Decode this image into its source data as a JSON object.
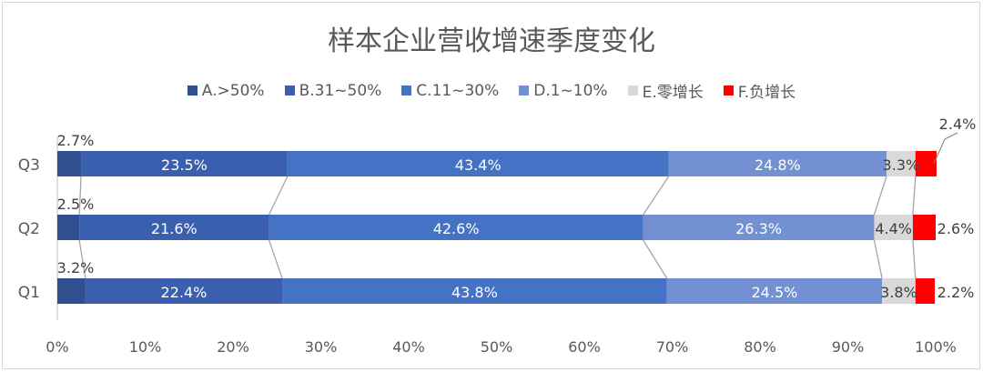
{
  "chart_data": {
    "type": "bar",
    "orientation": "horizontal",
    "stacked": "percent",
    "title": "样本企业营收增速季度变化",
    "categories": [
      "Q3",
      "Q2",
      "Q1"
    ],
    "series": [
      {
        "name": "A.>50%",
        "color": "#2F4F8F",
        "values": [
          2.7,
          2.5,
          3.2
        ],
        "labels": [
          "2.7%",
          "2.5%",
          "3.2%"
        ]
      },
      {
        "name": "B.31~50%",
        "color": "#3A5FAE",
        "values": [
          23.5,
          21.6,
          22.4
        ],
        "labels": [
          "23.5%",
          "21.6%",
          "22.4%"
        ]
      },
      {
        "name": "C.11~30%",
        "color": "#4472C4",
        "values": [
          43.4,
          42.6,
          43.8
        ],
        "labels": [
          "43.4%",
          "42.6%",
          "43.8%"
        ]
      },
      {
        "name": "D.1~10%",
        "color": "#7391D2",
        "values": [
          24.8,
          26.3,
          24.5
        ],
        "labels": [
          "24.8%",
          "26.3%",
          "24.5%"
        ]
      },
      {
        "name": "E.零增长",
        "color": "#D9D9D9",
        "values": [
          3.3,
          4.4,
          3.8
        ],
        "labels": [
          "3.3%",
          "4.4%",
          "3.8%"
        ]
      },
      {
        "name": "F.负增长",
        "color": "#FF0000",
        "values": [
          2.4,
          2.6,
          2.2
        ],
        "labels": [
          "2.4%",
          "2.6%",
          "2.2%"
        ]
      }
    ],
    "xlim": [
      0,
      100
    ],
    "x_ticks": [
      "0%",
      "10%",
      "20%",
      "30%",
      "40%",
      "50%",
      "60%",
      "70%",
      "80%",
      "90%",
      "100%"
    ],
    "legend_position": "top",
    "grid": false,
    "series_lines": true
  }
}
